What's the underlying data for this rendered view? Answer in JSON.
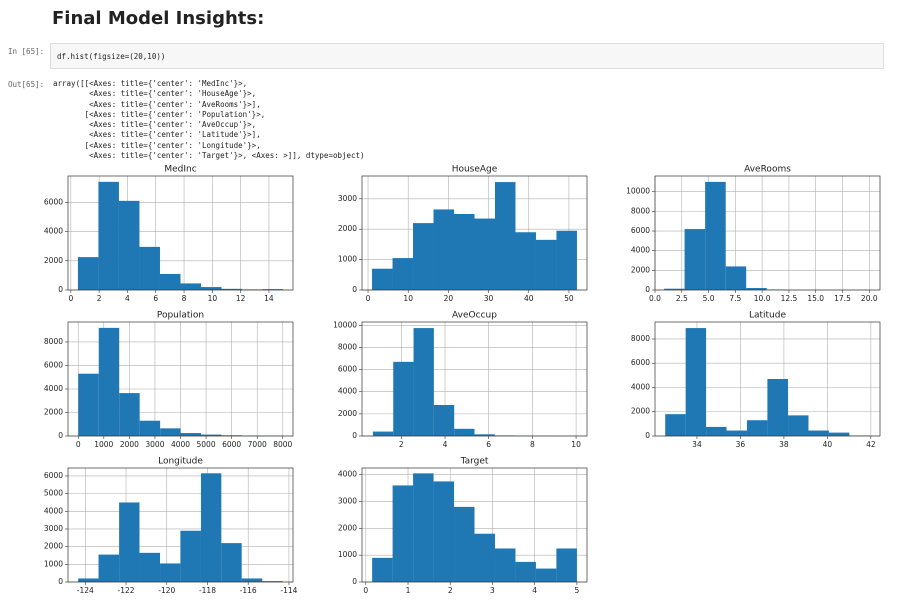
{
  "heading": "Final Model Insights:",
  "cell_in": {
    "prompt": "In [65]:",
    "code": "df.hist(figsize=(20,10))"
  },
  "cell_out": {
    "prompt": "Out[65]:",
    "lines": [
      "array([[<Axes: title={'center': 'MedInc'}>,",
      "        <Axes: title={'center': 'HouseAge'}>,",
      "        <Axes: title={'center': 'AveRooms'}>],",
      "       [<Axes: title={'center': 'Population'}>,",
      "        <Axes: title={'center': 'AveOccup'}>,",
      "        <Axes: title={'center': 'Latitude'}>],",
      "       [<Axes: title={'center': 'Longitude'}>,",
      "        <Axes: title={'center': 'Target'}>, <Axes: >]], dtype=object)"
    ]
  },
  "chart_data": [
    {
      "type": "histogram",
      "title": "MedInc",
      "color": "#1f77b4",
      "grid": true,
      "bins": [
        0.5,
        1.95,
        3.4,
        4.85,
        6.3,
        7.75,
        9.2,
        10.65,
        12.1,
        13.55,
        15.0
      ],
      "values": [
        2250,
        7400,
        6100,
        2950,
        1100,
        450,
        200,
        80,
        40,
        60
      ],
      "xlim": [
        -0.2,
        15.7
      ],
      "xticks": [
        0,
        2,
        4,
        6,
        8,
        10,
        12,
        14
      ],
      "ylim": [
        0,
        7800
      ],
      "yticks": [
        0,
        2000,
        4000,
        6000
      ]
    },
    {
      "type": "histogram",
      "title": "HouseAge",
      "color": "#1f77b4",
      "grid": true,
      "bins": [
        1,
        6.1,
        11.2,
        16.3,
        21.4,
        26.5,
        31.6,
        36.7,
        41.8,
        46.9,
        52
      ],
      "values": [
        700,
        1050,
        2200,
        2650,
        2500,
        2350,
        3550,
        1900,
        1650,
        1950
      ],
      "xlim": [
        -1.5,
        54.5
      ],
      "xticks": [
        0,
        10,
        20,
        30,
        40,
        50
      ],
      "ylim": [
        0,
        3750
      ],
      "yticks": [
        0,
        1000,
        2000,
        3000
      ]
    },
    {
      "type": "histogram",
      "title": "AveRooms",
      "color": "#1f77b4",
      "grid": true,
      "bins": [
        0.85,
        2.76,
        4.68,
        6.6,
        8.51,
        10.43,
        12.34,
        14.26,
        16.17,
        18.09,
        20.0
      ],
      "values": [
        130,
        6200,
        11000,
        2400,
        200,
        50,
        10,
        5,
        2,
        5
      ],
      "xlim": [
        0,
        21
      ],
      "xticks": [
        {
          "value": 0,
          "label": "0.0"
        },
        2.5,
        {
          "value": 5,
          "label": "5.0"
        },
        7.5,
        {
          "value": 10,
          "label": "10.0"
        },
        12.5,
        {
          "value": 15,
          "label": "15.0"
        },
        17.5,
        {
          "value": 20,
          "label": "20.0"
        }
      ],
      "ylim": [
        0,
        11600
      ],
      "yticks": [
        0,
        2000,
        4000,
        6000,
        8000,
        10000
      ]
    },
    {
      "type": "histogram",
      "title": "Population",
      "color": "#1f77b4",
      "grid": true,
      "bins": [
        3,
        803,
        1603,
        2403,
        3203,
        4003,
        4803,
        5603,
        6403,
        7203,
        8003
      ],
      "values": [
        5300,
        9200,
        3650,
        1300,
        650,
        250,
        120,
        60,
        30,
        20
      ],
      "xlim": [
        -400,
        8400
      ],
      "xticks": [
        0,
        1000,
        2000,
        3000,
        4000,
        5000,
        6000,
        7000,
        8000
      ],
      "ylim": [
        0,
        9700
      ],
      "yticks": [
        0,
        2000,
        4000,
        6000,
        8000
      ]
    },
    {
      "type": "histogram",
      "title": "AveOccup",
      "color": "#1f77b4",
      "grid": true,
      "bins": [
        0.7,
        1.63,
        2.56,
        3.49,
        4.42,
        5.35,
        6.28,
        7.21,
        8.14,
        9.07,
        10.0
      ],
      "values": [
        400,
        6700,
        9750,
        2800,
        650,
        150,
        50,
        20,
        10,
        5
      ],
      "xlim": [
        0.2,
        10.5
      ],
      "xticks": [
        2,
        4,
        6,
        8,
        10
      ],
      "ylim": [
        0,
        10300
      ],
      "yticks": [
        0,
        2000,
        4000,
        6000,
        8000,
        10000
      ]
    },
    {
      "type": "histogram",
      "title": "Latitude",
      "color": "#1f77b4",
      "grid": true,
      "bins": [
        32.54,
        33.48,
        34.42,
        35.36,
        36.3,
        37.24,
        38.19,
        39.13,
        40.07,
        41.01,
        41.95
      ],
      "values": [
        1800,
        8900,
        750,
        450,
        1300,
        4700,
        1700,
        450,
        280,
        40
      ],
      "xlim": [
        32.07,
        42.42
      ],
      "xticks": [
        34,
        36,
        38,
        40,
        42
      ],
      "ylim": [
        0,
        9400
      ],
      "yticks": [
        0,
        2000,
        4000,
        6000,
        8000
      ]
    },
    {
      "type": "histogram",
      "title": "Longitude",
      "color": "#1f77b4",
      "grid": true,
      "bins": [
        -124.35,
        -123.35,
        -122.34,
        -121.34,
        -120.33,
        -119.33,
        -118.32,
        -117.32,
        -116.32,
        -115.31,
        -114.31
      ],
      "values": [
        200,
        1550,
        4500,
        1650,
        1050,
        2900,
        6150,
        2200,
        200,
        50
      ],
      "xlim": [
        -124.85,
        -113.8
      ],
      "xticks": [
        -124,
        -122,
        -120,
        -118,
        -116,
        -114
      ],
      "ylim": [
        0,
        6450
      ],
      "yticks": [
        0,
        1000,
        2000,
        3000,
        4000,
        5000,
        6000
      ]
    },
    {
      "type": "histogram",
      "title": "Target",
      "color": "#1f77b4",
      "grid": true,
      "bins": [
        0.15,
        0.635,
        1.12,
        1.605,
        2.09,
        2.575,
        3.06,
        3.545,
        4.03,
        4.515,
        5.0
      ],
      "values": [
        900,
        3600,
        4050,
        3750,
        2800,
        1800,
        1250,
        750,
        500,
        1250
      ],
      "xlim": [
        -0.09,
        5.24
      ],
      "xticks": [
        0,
        1,
        2,
        3,
        4,
        5
      ],
      "ylim": [
        0,
        4250
      ],
      "yticks": [
        0,
        1000,
        2000,
        3000,
        4000
      ]
    }
  ]
}
